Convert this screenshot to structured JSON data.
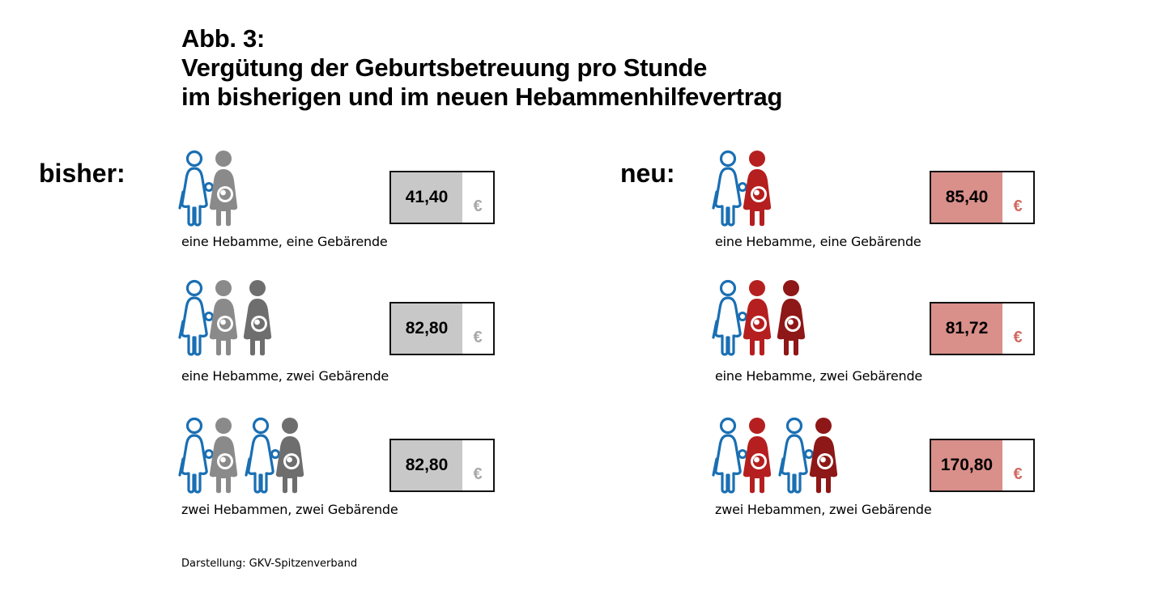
{
  "figure": {
    "title_line1": "Abb. 3:",
    "title_line2": "Vergütung der Geburtsbetreuung pro Stunde",
    "title_line3": "im bisherigen und im neuen Hebammenhilfevertrag",
    "source": "Darstellung: GKV-Spitzenverband"
  },
  "colors": {
    "midwife": "#1a6fb3",
    "old_pregnant_1": "#8a8a8a",
    "old_pregnant_2": "#6e6e6e",
    "new_pregnant_1": "#b51f1f",
    "new_pregnant_2": "#8e1717",
    "old_box_fill": "#c8c8c8",
    "old_euro": "#a8a8a8",
    "new_box_fill": "#d98f8a",
    "new_euro": "#d06a62"
  },
  "columns": [
    {
      "label": "bisher:",
      "rows": [
        {
          "caption": "eine Hebamme, eine Gebärende",
          "value": "41,40",
          "currency": "€",
          "figures": [
            "midwife",
            "pregnant"
          ]
        },
        {
          "caption": "eine Hebamme, zwei Gebärende",
          "value": "82,80",
          "currency": "€",
          "figures": [
            "midwife",
            "pregnant",
            "pregnant2"
          ]
        },
        {
          "caption": "zwei Hebammen, zwei Gebärende",
          "value": "82,80",
          "currency": "€",
          "figures": [
            "midwife",
            "pregnant",
            "midwife",
            "pregnant2"
          ]
        }
      ]
    },
    {
      "label": "neu:",
      "rows": [
        {
          "caption": "eine Hebamme, eine Gebärende",
          "value": "85,40",
          "currency": "€",
          "figures": [
            "midwife",
            "pregnant"
          ]
        },
        {
          "caption": "eine Hebamme, zwei Gebärende",
          "value": "81,72",
          "currency": "€",
          "figures": [
            "midwife",
            "pregnant",
            "pregnant2"
          ]
        },
        {
          "caption": "zwei Hebammen, zwei Gebärende",
          "value": "170,80",
          "currency": "€",
          "figures": [
            "midwife",
            "pregnant",
            "midwife",
            "pregnant2"
          ]
        }
      ]
    }
  ]
}
